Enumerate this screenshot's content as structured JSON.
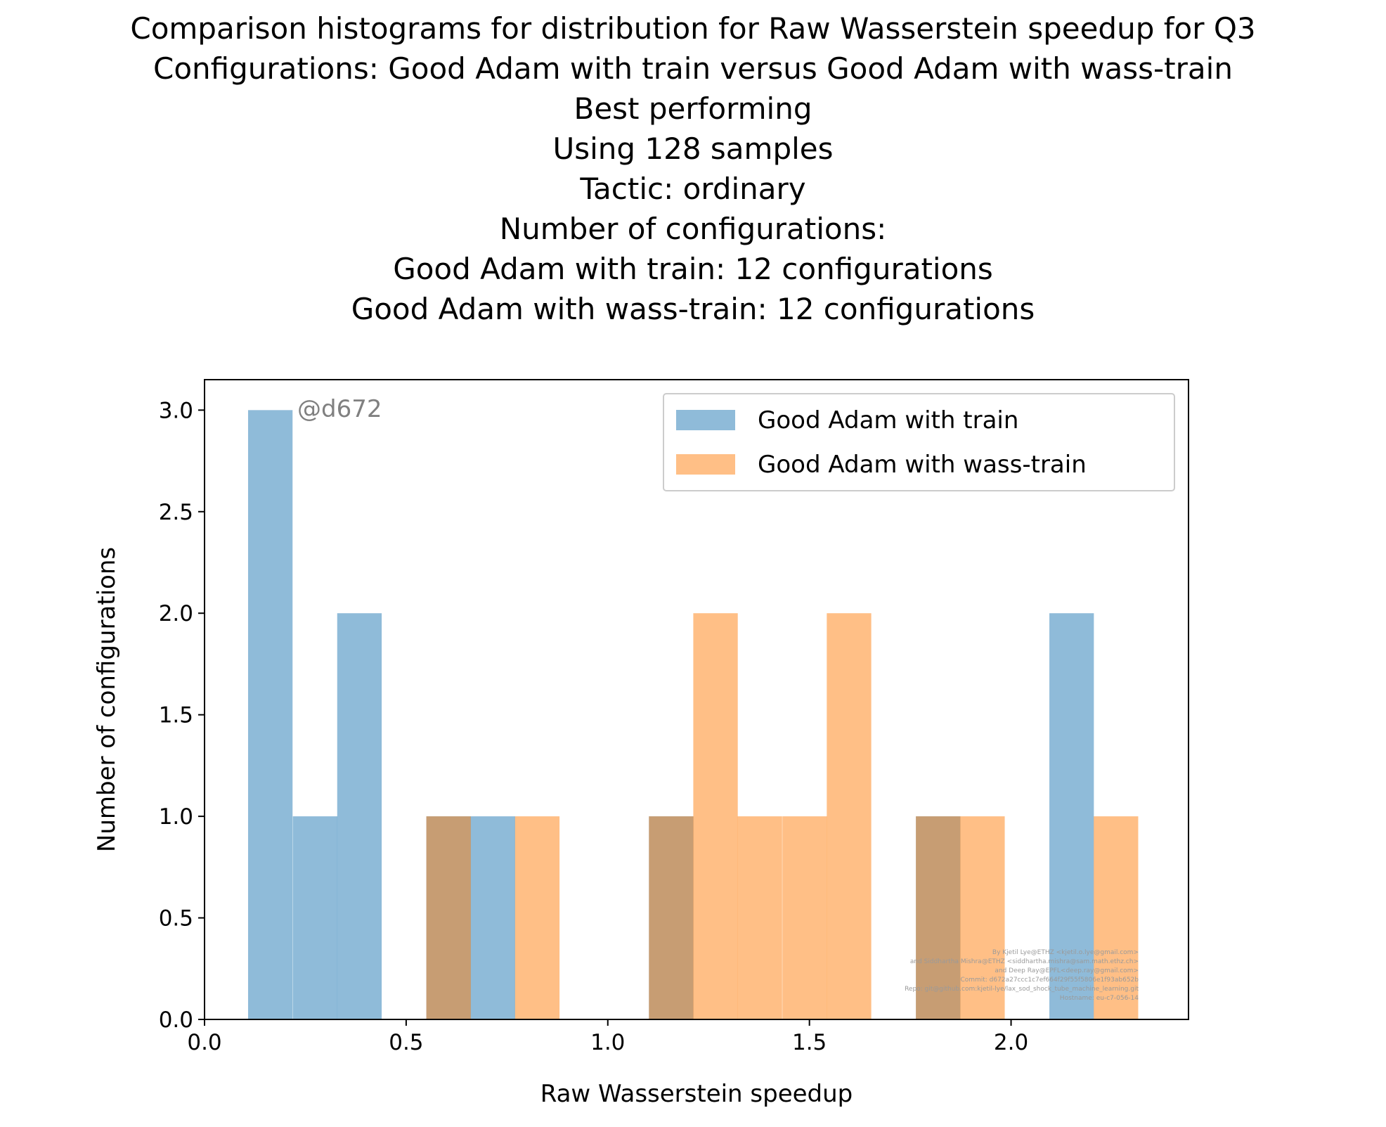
{
  "chart_data": {
    "type": "bar",
    "title_lines": [
      "Comparison histograms for distribution for Raw Wasserstein speedup for Q3",
      "Configurations: Good Adam with train versus Good Adam with wass-train",
      "Best performing",
      "Using 128 samples",
      "Tactic: ordinary",
      "Number of configurations:",
      "Good Adam with train: 12 configurations",
      "Good Adam with wass-train: 12 configurations"
    ],
    "xlabel": "Raw Wasserstein speedup",
    "ylabel": "Number of configurations",
    "xlim": [
      0.0,
      2.44
    ],
    "ylim": [
      0.0,
      3.15
    ],
    "xticks": [
      "0.0",
      "0.5",
      "1.0",
      "1.5",
      "2.0"
    ],
    "yticks": [
      "0.0",
      "0.5",
      "1.0",
      "1.5",
      "2.0",
      "2.5",
      "3.0"
    ],
    "legend_position": "top-right",
    "annotation": "@d672",
    "credits": [
      "By Kjetil Lye@ETHZ <kjetil.o.lye@gmail.com>",
      "and Siddhartha Mishra@ETHZ <siddhartha.mishra@sam.math.ethz.ch>",
      "and Deep Ray@EPFL<deep.ray@gmail.com>",
      "Commit: d672a27ccc1c7ef664f29f55f5806e1f93ab652b",
      "Repo: git@github.com:kjetil-lye/lax_sod_shock_tube_machine_learning.git",
      "Hostname: eu-c7-056-14"
    ],
    "bin_width": 0.1103,
    "series": [
      {
        "name": "Good Adam with train",
        "color": "#1f77b4",
        "opacity": 0.5,
        "bins": [
          {
            "x0": 0.108,
            "count": 3
          },
          {
            "x0": 0.219,
            "count": 1
          },
          {
            "x0": 0.329,
            "count": 2
          },
          {
            "x0": 0.55,
            "count": 1
          },
          {
            "x0": 0.66,
            "count": 1
          },
          {
            "x0": 1.102,
            "count": 1
          },
          {
            "x0": 1.764,
            "count": 1
          },
          {
            "x0": 2.095,
            "count": 2
          }
        ]
      },
      {
        "name": "Good Adam with wass-train",
        "color": "#ff7f0e",
        "opacity": 0.5,
        "bins": [
          {
            "x0": 0.55,
            "count": 1
          },
          {
            "x0": 0.77,
            "count": 1
          },
          {
            "x0": 1.102,
            "count": 1
          },
          {
            "x0": 1.212,
            "count": 2
          },
          {
            "x0": 1.322,
            "count": 1
          },
          {
            "x0": 1.433,
            "count": 1
          },
          {
            "x0": 1.543,
            "count": 2
          },
          {
            "x0": 1.764,
            "count": 1
          },
          {
            "x0": 1.874,
            "count": 1
          },
          {
            "x0": 2.205,
            "count": 1
          }
        ]
      }
    ]
  }
}
